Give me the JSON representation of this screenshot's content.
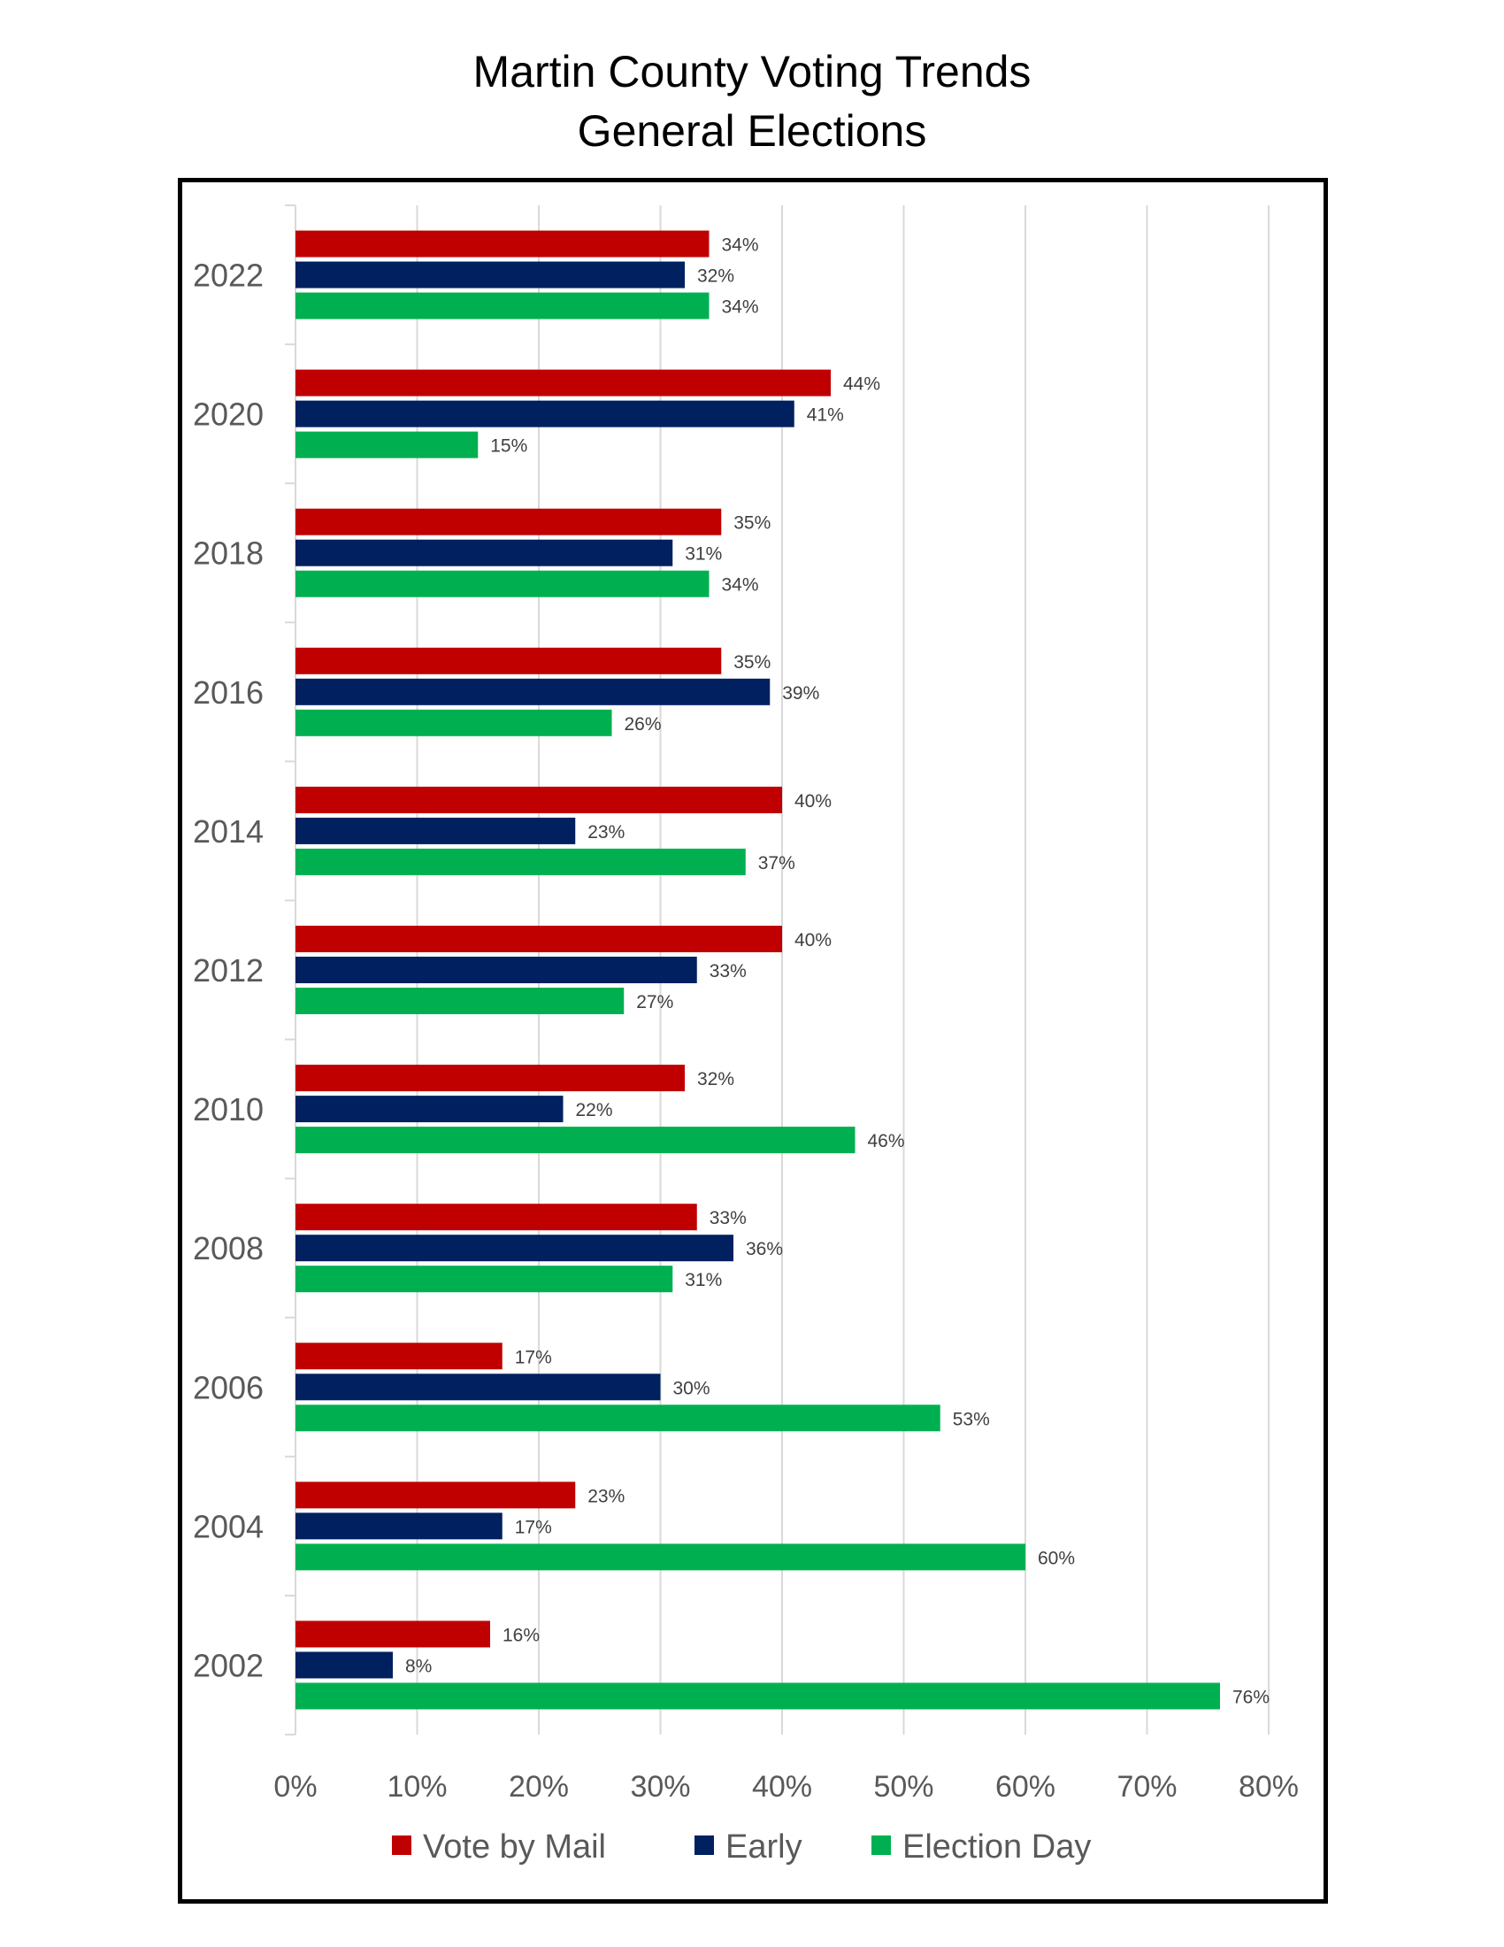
{
  "title": {
    "line1": "Martin County Voting Trends",
    "line2": "General Elections"
  },
  "colors": {
    "vote_by_mail": "#C00000",
    "early": "#002060",
    "election_day": "#00B050",
    "gridline": "#D9D9D9",
    "axis_text": "#595959"
  },
  "chart_data": {
    "type": "bar",
    "orientation": "horizontal",
    "title": "Martin County Voting Trends General Elections",
    "xlabel": "",
    "ylabel": "",
    "categories": [
      "2022",
      "2020",
      "2018",
      "2016",
      "2014",
      "2012",
      "2010",
      "2008",
      "2006",
      "2004",
      "2002"
    ],
    "series": [
      {
        "name": "Vote by Mail",
        "color": "#C00000",
        "values": [
          34,
          44,
          35,
          35,
          40,
          40,
          32,
          33,
          17,
          23,
          16
        ]
      },
      {
        "name": "Early",
        "color": "#002060",
        "values": [
          32,
          41,
          31,
          39,
          23,
          33,
          22,
          36,
          30,
          17,
          8
        ]
      },
      {
        "name": "Election Day",
        "color": "#00B050",
        "values": [
          34,
          15,
          34,
          26,
          37,
          27,
          46,
          31,
          53,
          60,
          76
        ]
      }
    ],
    "xlim": [
      0,
      80
    ],
    "xticks": [
      0,
      10,
      20,
      30,
      40,
      50,
      60,
      70,
      80
    ],
    "tick_labels": [
      "0%",
      "10%",
      "20%",
      "30%",
      "40%",
      "50%",
      "60%",
      "70%",
      "80%"
    ],
    "value_suffix": "%",
    "grid": "vertical",
    "legend_position": "bottom"
  }
}
